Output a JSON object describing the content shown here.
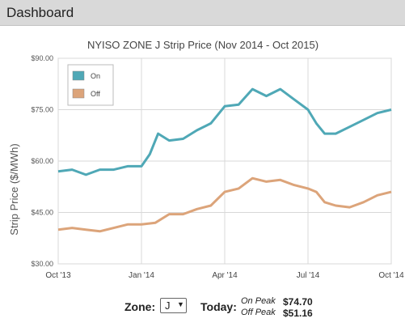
{
  "header": {
    "title": "Dashboard"
  },
  "controls": {
    "zone_label": "Zone:",
    "zone_value": "J",
    "today_label": "Today:",
    "on_peak_label": "On Peak",
    "on_peak_value": "$74.70",
    "off_peak_label": "Off Peak",
    "off_peak_value": "$51.16"
  },
  "colors": {
    "on": "#4fa8b6",
    "off": "#dca47a"
  },
  "chart_data": {
    "type": "line",
    "title": "NYISO ZONE J Strip Price (Nov 2014 - Oct 2015)",
    "ylabel": "Strip Price ($/MWh)",
    "xlabel": "",
    "ylim": [
      30,
      90
    ],
    "yticks": [
      "$30.00",
      "$45.00",
      "$60.00",
      "$75.00",
      "$90.00"
    ],
    "ytick_values": [
      30,
      45,
      60,
      75,
      90
    ],
    "xticks": [
      "Oct '13",
      "Jan '14",
      "Apr '14",
      "Jul '14",
      "Oct '14"
    ],
    "xtick_values": [
      0,
      3,
      6,
      9,
      12
    ],
    "xlim": [
      0,
      12
    ],
    "grid": true,
    "legend": "top-left",
    "series": [
      {
        "name": "On",
        "color": "#4fa8b6",
        "x": [
          0,
          0.5,
          1,
          1.5,
          2,
          2.5,
          3,
          3.3,
          3.6,
          4,
          4.5,
          5,
          5.5,
          6,
          6.5,
          7,
          7.5,
          8,
          8.5,
          9,
          9.3,
          9.6,
          10,
          10.5,
          11,
          11.5,
          12
        ],
        "y": [
          57,
          57.5,
          56,
          57.5,
          57.5,
          58.5,
          58.5,
          62,
          68,
          66,
          66.5,
          69,
          71,
          76,
          76.5,
          81,
          79,
          81,
          78,
          75,
          71,
          68,
          68,
          70,
          72,
          74,
          75
        ]
      },
      {
        "name": "Off",
        "color": "#dca47a",
        "x": [
          0,
          0.5,
          1,
          1.5,
          2,
          2.5,
          3,
          3.5,
          4,
          4.5,
          5,
          5.5,
          6,
          6.5,
          7,
          7.5,
          8,
          8.5,
          9,
          9.3,
          9.6,
          10,
          10.5,
          11,
          11.5,
          12
        ],
        "y": [
          40,
          40.5,
          40,
          39.5,
          40.5,
          41.5,
          41.5,
          42,
          44.5,
          44.5,
          46,
          47,
          51,
          52,
          55,
          54,
          54.5,
          53,
          52,
          51,
          48,
          47,
          46.5,
          48,
          50,
          51
        ]
      }
    ]
  }
}
